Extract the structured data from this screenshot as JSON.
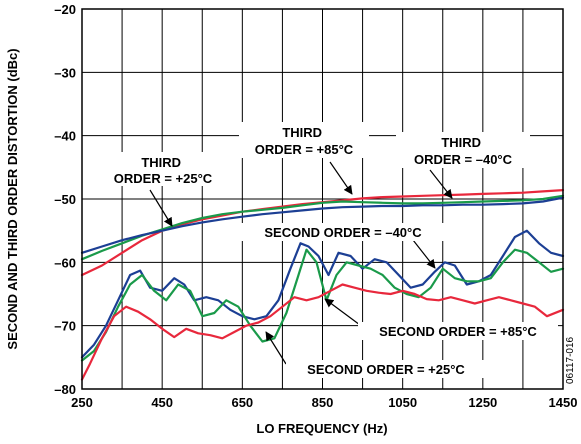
{
  "chart_data": {
    "type": "line",
    "xlabel": "LO FREQUENCY (Hz)",
    "ylabel": "SECOND AND THIRD ORDER DISTORTION (dBc)",
    "xlim": [
      250,
      1450
    ],
    "ylim": [
      -80,
      -20
    ],
    "xticks": [
      250,
      450,
      650,
      850,
      1050,
      1250,
      1450
    ],
    "yticks": [
      -80,
      -70,
      -60,
      -50,
      -40,
      -30,
      -20
    ],
    "x_grid_step": 100,
    "grid": true,
    "figure_id": "06117-016",
    "series": [
      {
        "color": "#e8283c",
        "x": [
          250,
          300,
          350,
          400,
          450,
          500,
          550,
          600,
          650,
          700,
          750,
          800,
          850,
          900,
          950,
          1000,
          1050,
          1100,
          1150,
          1200,
          1250,
          1300,
          1350,
          1400,
          1450
        ],
        "y": [
          -62,
          -60.5,
          -58.5,
          -56.5,
          -55,
          -54,
          -53.2,
          -52.6,
          -52,
          -51.6,
          -51.2,
          -50.8,
          -50.5,
          -50.2,
          -49.9,
          -49.7,
          -49.6,
          -49.5,
          -49.4,
          -49.3,
          -49.2,
          -49.1,
          -49,
          -48.8,
          -48.6
        ]
      },
      {
        "color": "#1a9a4a",
        "x": [
          250,
          300,
          350,
          400,
          450,
          500,
          550,
          600,
          650,
          700,
          750,
          800,
          850,
          900,
          950,
          1000,
          1050,
          1100,
          1150,
          1200,
          1250,
          1300,
          1350,
          1400,
          1450
        ],
        "y": [
          -59.5,
          -58.2,
          -57,
          -55.8,
          -54.8,
          -53.8,
          -53,
          -52.4,
          -52,
          -51.7,
          -51.4,
          -51,
          -50.6,
          -50.4,
          -50.5,
          -50.6,
          -50.7,
          -50.7,
          -50.6,
          -50.5,
          -50.4,
          -50.3,
          -50.2,
          -50,
          -49.5
        ]
      },
      {
        "color": "#1c3f94",
        "x": [
          250,
          300,
          350,
          400,
          450,
          500,
          550,
          600,
          650,
          700,
          750,
          800,
          850,
          900,
          950,
          1000,
          1050,
          1100,
          1150,
          1200,
          1250,
          1300,
          1350,
          1400,
          1450
        ],
        "y": [
          -58.5,
          -57.5,
          -56.5,
          -55.7,
          -55,
          -54.3,
          -53.7,
          -53.2,
          -52.8,
          -52.4,
          -52.1,
          -51.8,
          -51.5,
          -51.3,
          -51.2,
          -51.1,
          -51.1,
          -51,
          -51,
          -50.9,
          -50.9,
          -50.8,
          -50.7,
          -50.4,
          -49.8
        ]
      },
      {
        "color": "#1c3f94",
        "x": [
          250,
          280,
          310,
          340,
          370,
          395,
          420,
          450,
          480,
          505,
          530,
          560,
          590,
          620,
          650,
          680,
          710,
          740,
          770,
          795,
          815,
          840,
          865,
          890,
          920,
          950,
          980,
          1010,
          1040,
          1070,
          1100,
          1130,
          1155,
          1180,
          1210,
          1240,
          1270,
          1300,
          1330,
          1360,
          1390,
          1420,
          1450
        ],
        "y": [
          -75,
          -73,
          -70,
          -66,
          -62,
          -61.3,
          -64,
          -64.5,
          -62.5,
          -63.5,
          -66,
          -65.5,
          -66,
          -67.5,
          -68.5,
          -69,
          -68.5,
          -66,
          -61,
          -57,
          -57.5,
          -59,
          -62,
          -58.5,
          -59,
          -61,
          -59.5,
          -60,
          -62,
          -64,
          -63.5,
          -61.5,
          -60,
          -60.5,
          -63.5,
          -63,
          -62,
          -59,
          -56,
          -55,
          -57,
          -58.5,
          -59
        ]
      },
      {
        "color": "#1a9a4a",
        "x": [
          250,
          280,
          310,
          340,
          370,
          400,
          430,
          460,
          490,
          520,
          550,
          580,
          610,
          640,
          670,
          700,
          730,
          760,
          790,
          810,
          835,
          860,
          885,
          910,
          940,
          970,
          1000,
          1030,
          1060,
          1090,
          1120,
          1150,
          1180,
          1210,
          1240,
          1270,
          1300,
          1330,
          1360,
          1390,
          1420,
          1450
        ],
        "y": [
          -75.5,
          -74,
          -71,
          -67,
          -63.5,
          -62,
          -64.5,
          -66,
          -63.5,
          -64.5,
          -68.5,
          -68,
          -66,
          -67,
          -70,
          -72.5,
          -72,
          -68,
          -62,
          -58,
          -60,
          -66,
          -62,
          -60,
          -60.5,
          -61,
          -62,
          -64,
          -65,
          -65.5,
          -64,
          -61,
          -62.5,
          -63,
          -63,
          -62.5,
          -60,
          -58,
          -58.5,
          -60,
          -61.5,
          -61
        ]
      },
      {
        "color": "#e8283c",
        "x": [
          250,
          270,
          300,
          330,
          360,
          390,
          420,
          450,
          480,
          510,
          540,
          570,
          600,
          630,
          660,
          690,
          720,
          750,
          780,
          810,
          840,
          870,
          900,
          930,
          960,
          990,
          1020,
          1050,
          1080,
          1110,
          1140,
          1170,
          1200,
          1230,
          1260,
          1290,
          1320,
          1350,
          1380,
          1410,
          1450
        ],
        "y": [
          -78.5,
          -76,
          -72,
          -68.5,
          -67,
          -67.8,
          -69,
          -70.5,
          -71.8,
          -70.5,
          -71.2,
          -71.5,
          -72,
          -71,
          -70,
          -69.5,
          -68.5,
          -67,
          -65.5,
          -66,
          -65.5,
          -64.5,
          -63.5,
          -64,
          -64.5,
          -64.8,
          -65,
          -64.5,
          -65,
          -65.8,
          -66,
          -65.5,
          -66,
          -66.5,
          -66,
          -65.5,
          -66,
          -66.5,
          -67,
          -68.5,
          -67.5
        ]
      }
    ]
  },
  "annotations": [
    {
      "lines": [
        "THIRD",
        "ORDER = +25°C"
      ]
    },
    {
      "lines": [
        "THIRD",
        "ORDER = +85°C"
      ]
    },
    {
      "lines": [
        "THIRD",
        "ORDER = –40°C"
      ]
    },
    {
      "lines": [
        "SECOND ORDER = –40°C"
      ]
    },
    {
      "lines": [
        "SECOND ORDER = +85°C"
      ]
    },
    {
      "lines": [
        "SECOND ORDER = +25°C"
      ]
    }
  ]
}
